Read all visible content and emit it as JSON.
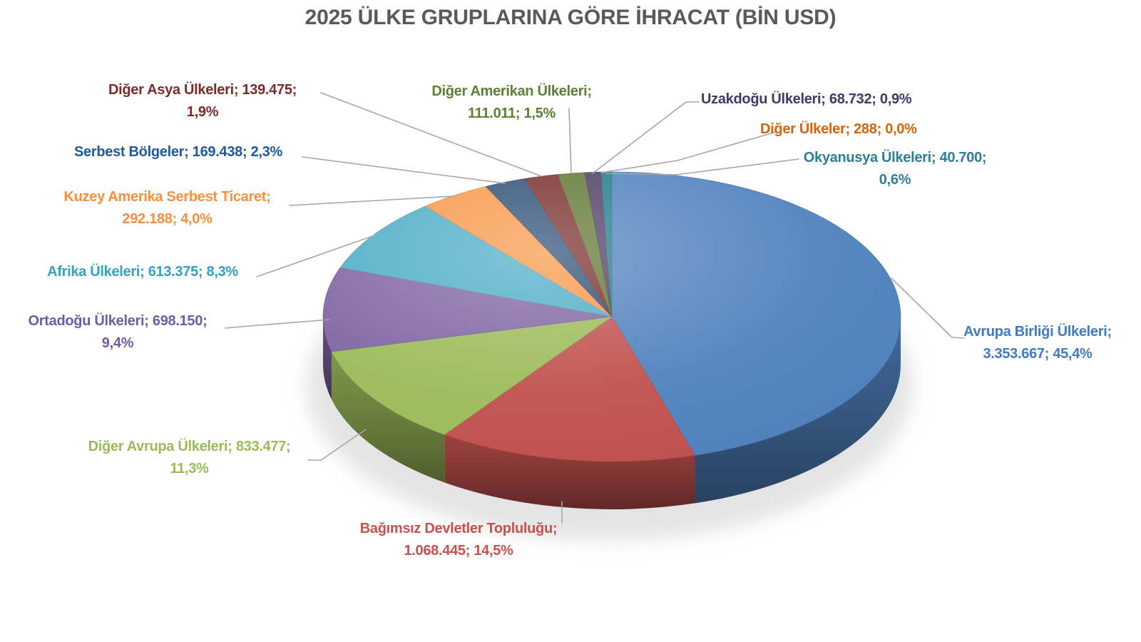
{
  "page": {
    "background": "#FFFFFF"
  },
  "chart_data": {
    "type": "pie",
    "style": "3d",
    "title": "2025 ÜLKE GRUPLARINA GÖRE İHRACAT (BİN USD)",
    "title_color": "#595959",
    "unit": "BİN USD",
    "legend": "none",
    "label_format": "name; value; percent",
    "leader_line_color": "#A6A6A6",
    "slices": [
      {
        "name": "Avrupa Birliği Ülkeleri",
        "value": 3353667,
        "value_display": "3.353.667",
        "pct": 45.4,
        "pct_display": "45,4%",
        "color": "#4F81BD",
        "label_color": "#3E7CC4",
        "label_lines": [
          "Avrupa Birliği Ülkeleri;",
          "3.353.667; 45,4%"
        ]
      },
      {
        "name": "Bağımsız Devletler Topluluğu",
        "value": 1068445,
        "value_display": "1.068.445",
        "pct": 14.5,
        "pct_display": "14,5%",
        "color": "#C0504D",
        "label_color": "#C8504E",
        "label_lines": [
          "Bağımsız Devletler Topluluğu;",
          "1.068.445; 14,5%"
        ]
      },
      {
        "name": "Diğer Avrupa Ülkeleri",
        "value": 833477,
        "value_display": "833.477",
        "pct": 11.3,
        "pct_display": "11,3%",
        "color": "#9BBB59",
        "label_color": "#9BBB59",
        "label_lines": [
          "Diğer Avrupa Ülkeleri; 833.477;",
          "11,3%"
        ]
      },
      {
        "name": "Ortadoğu Ülkeleri",
        "value": 698150,
        "value_display": "698.150",
        "pct": 9.4,
        "pct_display": "9,4%",
        "color": "#8064A2",
        "label_color": "#6F5BA7",
        "label_lines": [
          "Ortadoğu Ülkeleri; 698.150;",
          "9,4%"
        ]
      },
      {
        "name": "Afrika Ülkeleri",
        "value": 613375,
        "value_display": "613.375",
        "pct": 8.3,
        "pct_display": "8,3%",
        "color": "#4BACC6",
        "label_color": "#2FA3C7",
        "label_lines": [
          "Afrika Ülkeleri; 613.375; 8,3%"
        ]
      },
      {
        "name": "Kuzey Amerika Serbest Ticaret",
        "value": 292188,
        "value_display": "292.188",
        "pct": 4.0,
        "pct_display": "4,0%",
        "color": "#F79646",
        "label_color": "#F78F3C",
        "label_lines": [
          "Kuzey Amerika Serbest Ticaret;",
          "292.188; 4,0%"
        ]
      },
      {
        "name": "Serbest Bölgeler",
        "value": 169438,
        "value_display": "169.438",
        "pct": 2.3,
        "pct_display": "2,3%",
        "color": "#2C4D75",
        "label_color": "#1E5AA0",
        "label_lines": [
          "Serbest Bölgeler; 169.438; 2,3%"
        ]
      },
      {
        "name": "Diğer Asya Ülkeleri",
        "value": 139475,
        "value_display": "139.475",
        "pct": 1.9,
        "pct_display": "1,9%",
        "color": "#772C2A",
        "label_color": "#7B2B28",
        "label_lines": [
          "Diğer Asya Ülkeleri; 139.475;",
          "1,9%"
        ]
      },
      {
        "name": "Diğer Amerikan Ülkeleri",
        "value": 111011,
        "value_display": "111.011",
        "pct": 1.5,
        "pct_display": "1,5%",
        "color": "#5F7530",
        "label_color": "#5E7F33",
        "label_lines": [
          "Diğer Amerikan Ülkeleri;",
          "111.011; 1,5%"
        ]
      },
      {
        "name": "Uzakdoğu Ülkeleri",
        "value": 68732,
        "value_display": "68.732",
        "pct": 0.9,
        "pct_display": "0,9%",
        "color": "#4D3B62",
        "label_color": "#413768",
        "label_lines": [
          "Uzakdoğu Ülkeleri; 68.732; 0,9%"
        ]
      },
      {
        "name": "Diğer Ülkeler",
        "value": 288,
        "value_display": "288",
        "pct": 0.0,
        "pct_display": "0,0%",
        "color": "#B65708",
        "label_color": "#D2650C",
        "label_lines": [
          "Diğer Ülkeler; 288; 0,0%"
        ]
      },
      {
        "name": "Okyanusya Ülkeleri",
        "value": 40700,
        "value_display": "40.700",
        "pct": 0.6,
        "pct_display": "0,6%",
        "color": "#1F7A8A",
        "label_color": "#2B7F99",
        "label_lines": [
          "Okyanusya Ülkeleri; 40.700;",
          "0,6%"
        ]
      }
    ]
  }
}
